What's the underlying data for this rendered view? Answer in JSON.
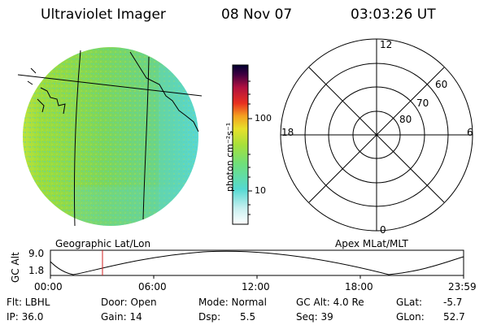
{
  "header": {
    "title": "Ultraviolet Imager",
    "date": "08 Nov 07",
    "time": "03:03:26 UT"
  },
  "colors": {
    "disk_green": "#7ed65a",
    "disk_cyan": "#58d8d0",
    "disk_yellow": "#c9e63a",
    "colorbar": [
      "#ffffff",
      "#c8f0f0",
      "#55d9d2",
      "#6fe07a",
      "#a8e03a",
      "#e8e02a",
      "#f4a020",
      "#e83020",
      "#b01040",
      "#000030"
    ]
  },
  "colorbar": {
    "unit_label": "photon cm⁻²s⁻¹",
    "tick_100": "100",
    "tick_10": "10"
  },
  "left_panel_caption": "Geographic Lat/Lon",
  "polar_plot": {
    "caption": "Apex MLat/MLT",
    "mlt_labels": {
      "top": "12",
      "left": "18",
      "right": "6",
      "bottom": "0"
    },
    "mlat_labels": [
      "60",
      "70",
      "80"
    ]
  },
  "altitude_plot": {
    "ylabel": "GC Alt",
    "ymax": "9.0",
    "ymin": "1.8",
    "time_ticks": [
      "00:00",
      "06:00",
      "12:00",
      "18:00",
      "23:59"
    ],
    "current_time_fraction": 0.126
  },
  "footer": {
    "row1": {
      "flt": "Flt: LBHL",
      "door": "Door: Open",
      "mode": "Mode: Normal",
      "gcalt": "GC Alt: 4.0 Re",
      "glat_label": "GLat:",
      "glat_value": "-5.7"
    },
    "row2": {
      "ip": "IP: 36.0",
      "gain": "Gain: 14",
      "dsp_label": "Dsp:",
      "dsp_value": "5.5",
      "seq": "Seq: 39",
      "glon_label": "GLon:",
      "glon_value": "52.7"
    }
  }
}
